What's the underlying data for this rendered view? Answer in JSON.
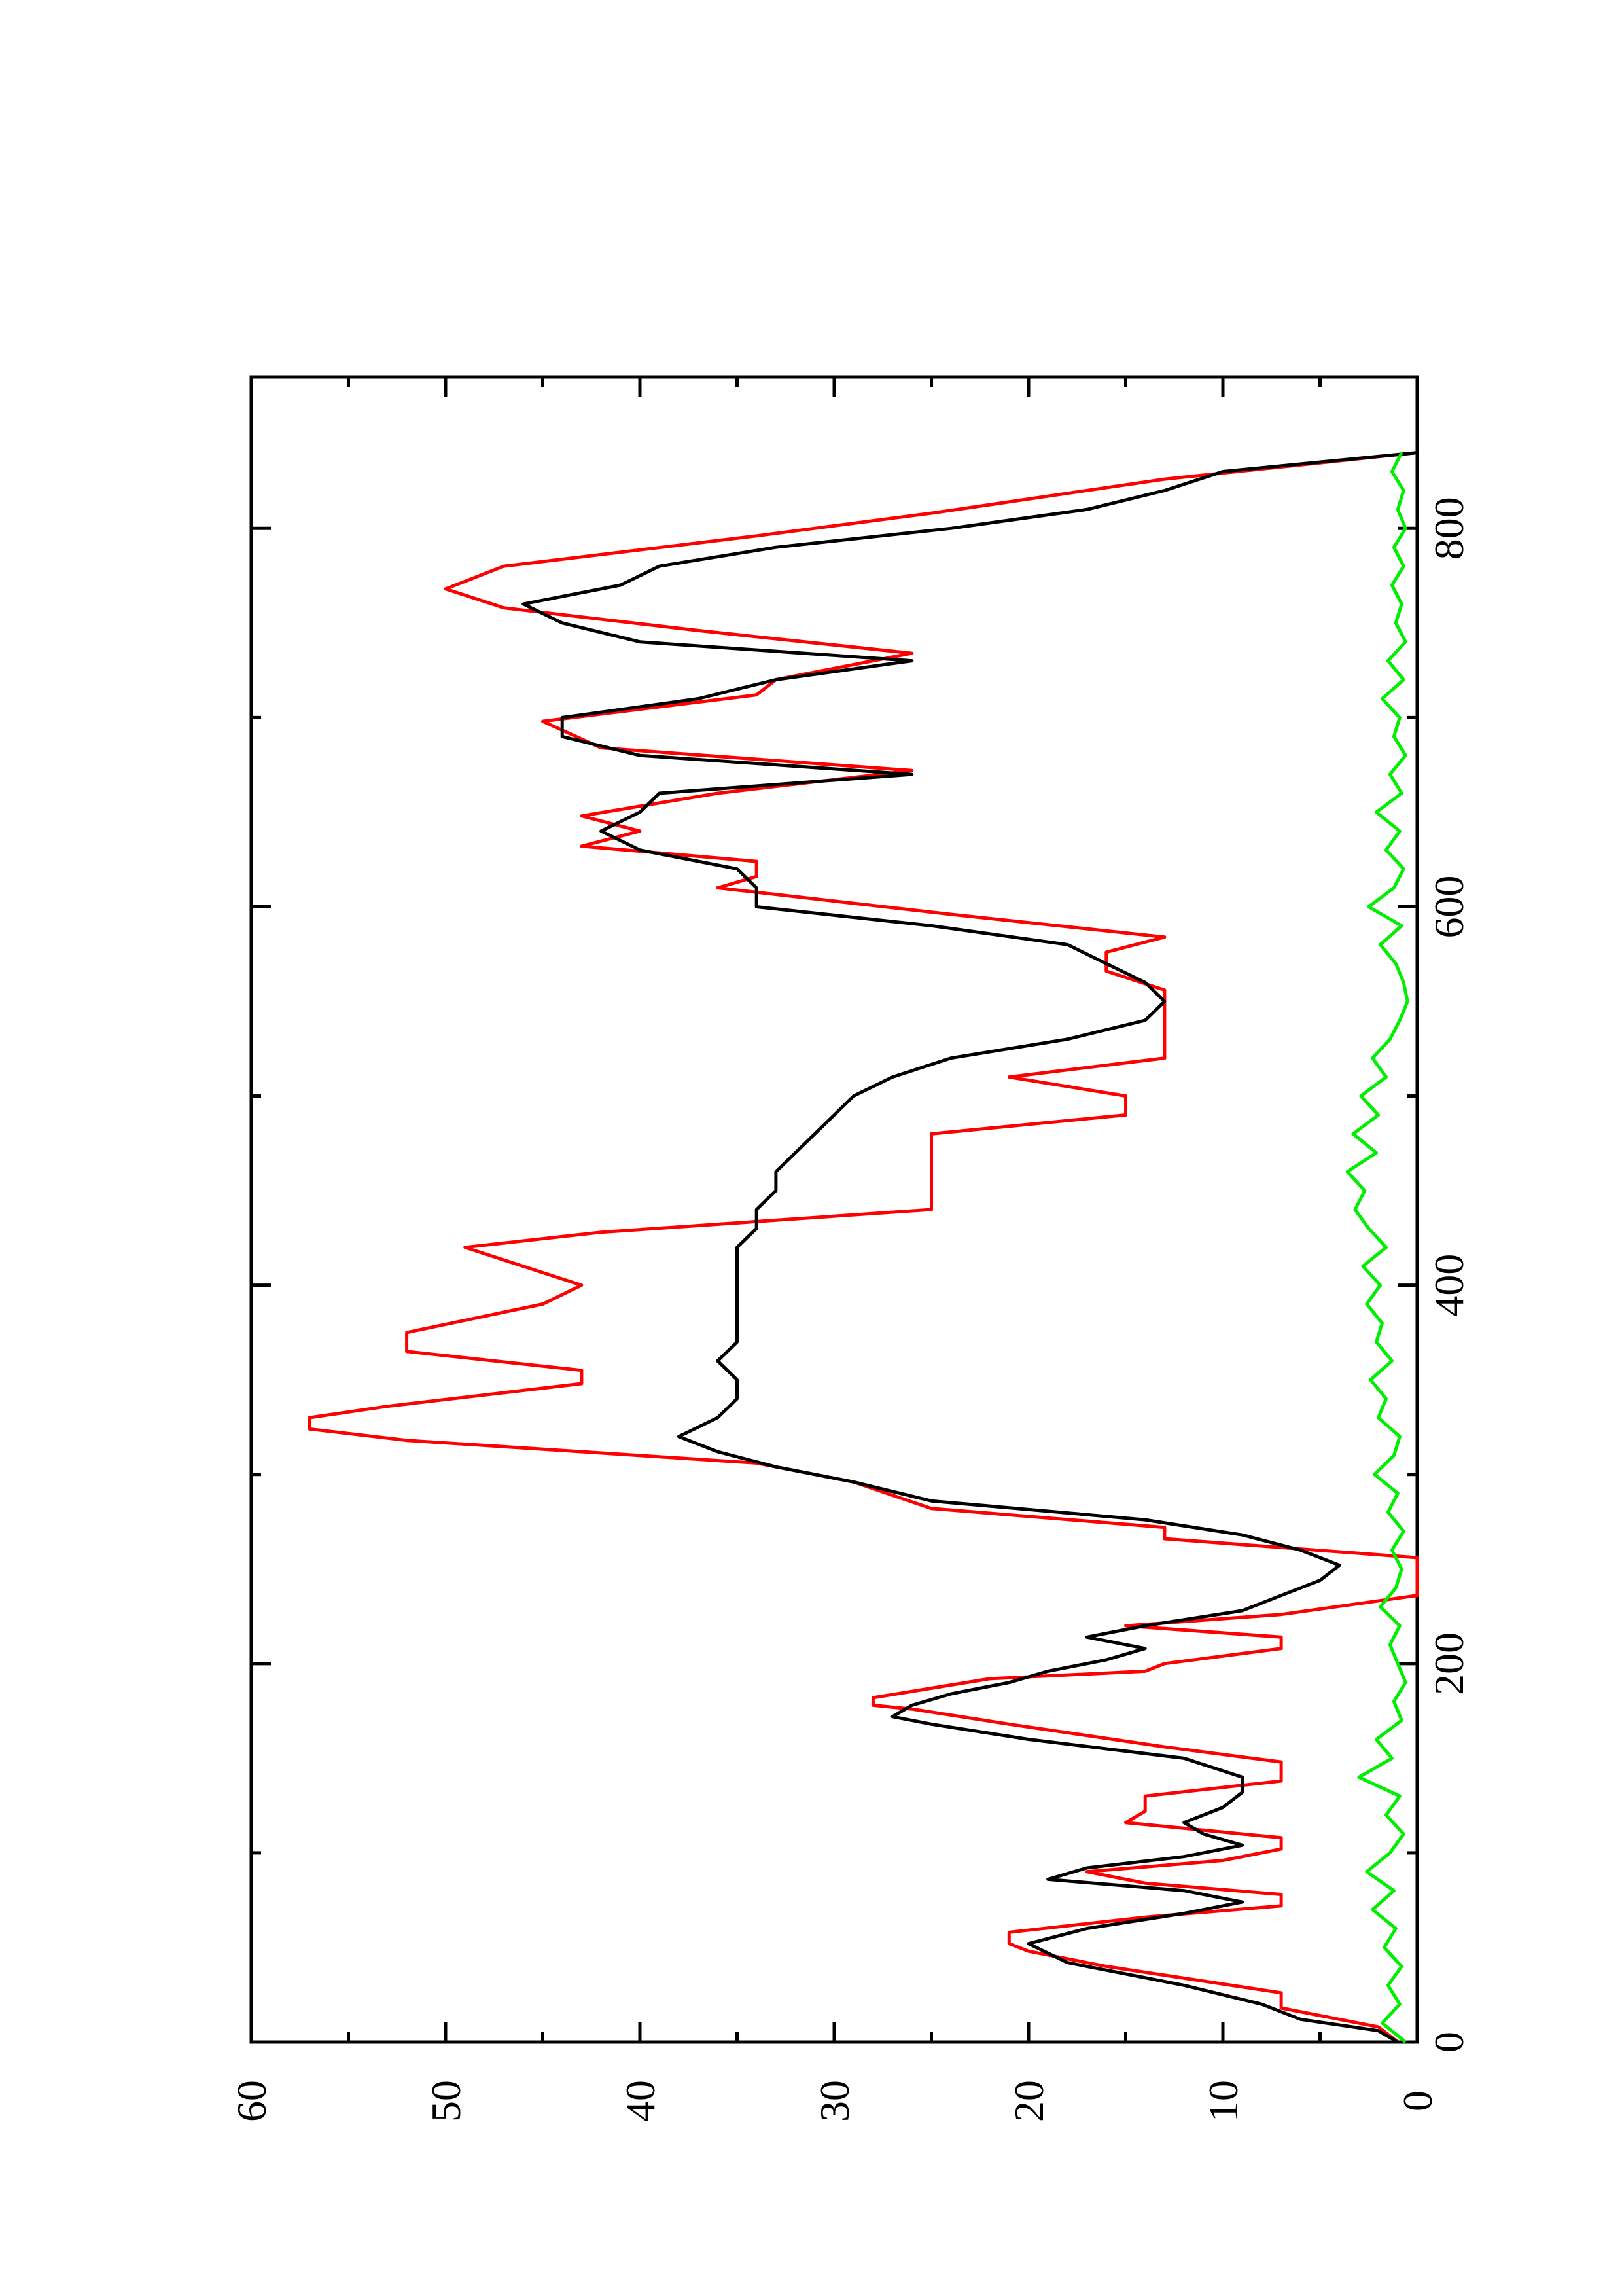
{
  "chart_data": {
    "type": "line",
    "title": "",
    "xlabel": "",
    "ylabel": "",
    "orientation": "rotated-90-clockwise-page",
    "xlim": [
      0,
      880
    ],
    "ylim": [
      0,
      60
    ],
    "x_ticks": [
      0,
      200,
      400,
      600,
      800
    ],
    "x_minor_ticks": [
      100,
      300,
      500,
      700
    ],
    "y_ticks": [
      0,
      10,
      20,
      30,
      40,
      50,
      60
    ],
    "y_minor_ticks": [
      5,
      15,
      25,
      35,
      45,
      55
    ],
    "grid": false,
    "legend": "none",
    "series": [
      {
        "color": "#ff0000",
        "x": [
          0,
          8,
          18,
          26,
          40,
          48,
          52,
          58,
          66,
          72,
          78,
          84,
          90,
          96,
          102,
          108,
          116,
          122,
          130,
          138,
          148,
          156,
          168,
          176,
          178,
          182,
          192,
          196,
          200,
          208,
          214,
          220,
          226,
          236,
          244,
          256,
          266,
          272,
          282,
          296,
          306,
          318,
          324,
          330,
          336,
          348,
          355,
          365,
          375,
          390,
          400,
          410,
          420,
          428,
          440,
          460,
          480,
          490,
          500,
          510,
          520,
          540,
          556,
          566,
          576,
          584,
          596,
          610,
          616,
          624,
          632,
          640,
          648,
          660,
          672,
          684,
          698,
          712,
          720,
          734,
          746,
          758,
          768,
          780,
          796,
          808,
          826,
          840
        ],
        "y": [
          1,
          2,
          7,
          7,
          16,
          20,
          21,
          21,
          14,
          7,
          7,
          14,
          17,
          10,
          7,
          7,
          15,
          14,
          14,
          7,
          7,
          13,
          21,
          26,
          28,
          28,
          22,
          14,
          13,
          7,
          7,
          15,
          7,
          0,
          0,
          0,
          13,
          13,
          25,
          29,
          34,
          52,
          57,
          57,
          53,
          43,
          43,
          52,
          52,
          45,
          43,
          46,
          49,
          42,
          25,
          25,
          25,
          15,
          15,
          21,
          13,
          13,
          13,
          16,
          16,
          13,
          24,
          36,
          34,
          34,
          43,
          40,
          43,
          36,
          26,
          42,
          45,
          34,
          33,
          26,
          37,
          47,
          50,
          47,
          34,
          25,
          13,
          0
        ]
      },
      {
        "color": "#000000",
        "x": [
          0,
          6,
          12,
          20,
          30,
          42,
          52,
          60,
          68,
          74,
          80,
          86,
          92,
          98,
          104,
          110,
          116,
          124,
          132,
          140,
          150,
          160,
          168,
          172,
          178,
          184,
          190,
          196,
          202,
          208,
          214,
          220,
          228,
          236,
          244,
          252,
          260,
          268,
          276,
          286,
          296,
          304,
          312,
          320,
          330,
          340,
          350,
          360,
          370,
          380,
          390,
          400,
          410,
          420,
          430,
          440,
          450,
          460,
          470,
          480,
          490,
          500,
          510,
          520,
          530,
          540,
          550,
          560,
          570,
          580,
          590,
          600,
          610,
          620,
          630,
          640,
          650,
          660,
          670,
          680,
          690,
          700,
          710,
          720,
          730,
          740,
          750,
          760,
          770,
          780,
          790,
          800,
          810,
          820,
          830,
          840
        ],
        "y": [
          1,
          2,
          6,
          8,
          12,
          18,
          20,
          17,
          12,
          9,
          12,
          19,
          17,
          12,
          9,
          11,
          12,
          10,
          9,
          9,
          12,
          20,
          25,
          27,
          26,
          24,
          21,
          19,
          16,
          14,
          17,
          14,
          9,
          7,
          5,
          4,
          6,
          9,
          14,
          25,
          29,
          33,
          36,
          38,
          36,
          35,
          35,
          36,
          35,
          35,
          35,
          35,
          35,
          35,
          34,
          34,
          33,
          33,
          32,
          31,
          30,
          29,
          27,
          24,
          18,
          14,
          13,
          14,
          16,
          18,
          25,
          34,
          34,
          35,
          40,
          42,
          40,
          39,
          26,
          40,
          44,
          44,
          37,
          33,
          26,
          40,
          44,
          46,
          41,
          39,
          33,
          24,
          17,
          13,
          10,
          0
        ]
      },
      {
        "color": "#00ee00",
        "x": [
          0,
          10,
          20,
          30,
          40,
          50,
          60,
          70,
          80,
          90,
          100,
          110,
          120,
          130,
          140,
          150,
          160,
          170,
          180,
          190,
          200,
          210,
          220,
          230,
          240,
          250,
          260,
          270,
          280,
          290,
          300,
          310,
          320,
          330,
          340,
          350,
          360,
          370,
          380,
          390,
          400,
          410,
          420,
          430,
          440,
          450,
          460,
          470,
          480,
          490,
          500,
          510,
          520,
          530,
          540,
          550,
          560,
          570,
          580,
          590,
          600,
          610,
          620,
          630,
          640,
          650,
          660,
          670,
          680,
          690,
          700,
          710,
          720,
          730,
          740,
          750,
          760,
          770,
          780,
          790,
          800,
          810,
          820,
          830,
          840
        ],
        "y": [
          0.6,
          1.8,
          0.9,
          1.5,
          0.8,
          1.7,
          1.1,
          2.3,
          1.2,
          2.6,
          1.4,
          0.7,
          1.6,
          0.9,
          3.0,
          1.3,
          2.1,
          0.8,
          1.2,
          0.6,
          1.0,
          1.4,
          0.9,
          1.9,
          1.1,
          0.8,
          1.3,
          0.7,
          1.5,
          1.0,
          2.2,
          1.2,
          0.9,
          2.0,
          1.6,
          2.4,
          1.3,
          2.1,
          1.8,
          2.6,
          1.9,
          2.8,
          1.6,
          2.5,
          3.2,
          2.7,
          3.6,
          2.1,
          3.3,
          2.0,
          2.9,
          1.6,
          2.3,
          1.4,
          0.9,
          0.5,
          0.7,
          1.1,
          1.9,
          0.8,
          2.5,
          1.2,
          0.7,
          1.6,
          0.9,
          2.1,
          0.8,
          1.4,
          0.6,
          1.2,
          0.9,
          1.8,
          0.7,
          1.5,
          0.6,
          1.1,
          0.8,
          1.3,
          0.7,
          1.2,
          0.6,
          1.0,
          0.7,
          1.3,
          0.8
        ]
      }
    ]
  }
}
